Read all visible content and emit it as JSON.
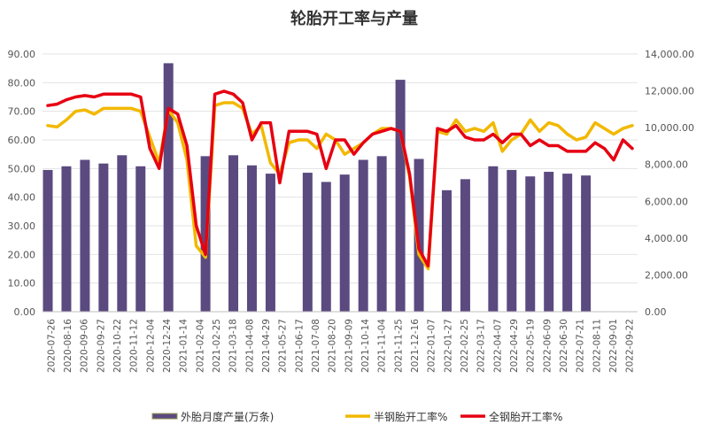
{
  "chart_data": {
    "type": "bar+line",
    "title": "轮胎开工率与产量",
    "x_ticks": [
      "2020-07-26",
      "2020-08-16",
      "2020-09-06",
      "2020-09-27",
      "2020-10-22",
      "2020-11-12",
      "2020-12-04",
      "2020-12-24",
      "2021-01-14",
      "2021-02-04",
      "2021-02-25",
      "2021-03-18",
      "2021-04-08",
      "2021-04-29",
      "2021-05-27",
      "2021-06-17",
      "2021-07-08",
      "2021-08-20",
      "2021-09-09",
      "2021-10-14",
      "2021-11-04",
      "2021-11-25",
      "2021-12-16",
      "2022-01-07",
      "2022-01-27",
      "2022-02-25",
      "2022-03-17",
      "2022-04-07",
      "2022-04-29",
      "2022-05-19",
      "2022-06-09",
      "2022-06-30",
      "2022-07-21",
      "2022-08-11",
      "2022-09-01",
      "2022-09-22"
    ],
    "y_left": {
      "min": 0,
      "max": 90,
      "step": 10,
      "ticks": [
        "0.00",
        "10.00",
        "20.00",
        "30.00",
        "40.00",
        "50.00",
        "60.00",
        "70.00",
        "80.00",
        "90.00"
      ]
    },
    "y_right": {
      "min": 0,
      "max": 14000,
      "step": 2000,
      "ticks": [
        "0.00",
        "2,000.00",
        "4,000.00",
        "6,000.00",
        "8,000.00",
        "10,000.00",
        "12,000.00",
        "14,000.00"
      ]
    },
    "legend": {
      "position": "bottom"
    },
    "series": [
      {
        "name": "外胎月度产量(万条)",
        "kind": "bar",
        "axis": "right",
        "color": "#5B4A80",
        "x": [
          0,
          2,
          4,
          6,
          8,
          10,
          13,
          17,
          20,
          22,
          24,
          28,
          30,
          32,
          34,
          36,
          38,
          40,
          43,
          45,
          48,
          50,
          52,
          54,
          56,
          58
        ],
        "values": [
          7700,
          7900,
          8250,
          8050,
          8500,
          7900,
          13500,
          8450,
          8500,
          7950,
          7500,
          7550,
          7050,
          7450,
          8250,
          8450,
          12600,
          8300,
          6600,
          7200,
          7900,
          7700,
          7350,
          7600,
          7500,
          7400
        ]
      },
      {
        "name": "半钢胎开工率%",
        "kind": "line",
        "axis": "left",
        "color": "#F2B800",
        "values": [
          65,
          64.5,
          67,
          70,
          70.5,
          69,
          71,
          71,
          71,
          71,
          70,
          61,
          52,
          70.5,
          66,
          53,
          23,
          19,
          72,
          73,
          73,
          71,
          62,
          65,
          52,
          48,
          59,
          60,
          60,
          57,
          62,
          60,
          55,
          57,
          59,
          62,
          64,
          64,
          63,
          47,
          20,
          15,
          63,
          62,
          67,
          63,
          64,
          63,
          66,
          56,
          60,
          62,
          67,
          63,
          66,
          65,
          62,
          60,
          61,
          66,
          64,
          62,
          64,
          65
        ]
      },
      {
        "name": "全钢胎开工率%",
        "kind": "line",
        "axis": "left",
        "color": "#E60012",
        "values": [
          72,
          72.5,
          74,
          75,
          75.5,
          75,
          76,
          76,
          76,
          76,
          75,
          57,
          50,
          71,
          69,
          58,
          30,
          20,
          76,
          77,
          76,
          73,
          60,
          66,
          66,
          45,
          63,
          63,
          63,
          62,
          50,
          60,
          60,
          55,
          59,
          62,
          63,
          64,
          63,
          48,
          22,
          16,
          64,
          63,
          65,
          61,
          60,
          60,
          62,
          59,
          62,
          62,
          58,
          60,
          58,
          58,
          56,
          56,
          56,
          59,
          57,
          53,
          60,
          57
        ]
      }
    ]
  }
}
